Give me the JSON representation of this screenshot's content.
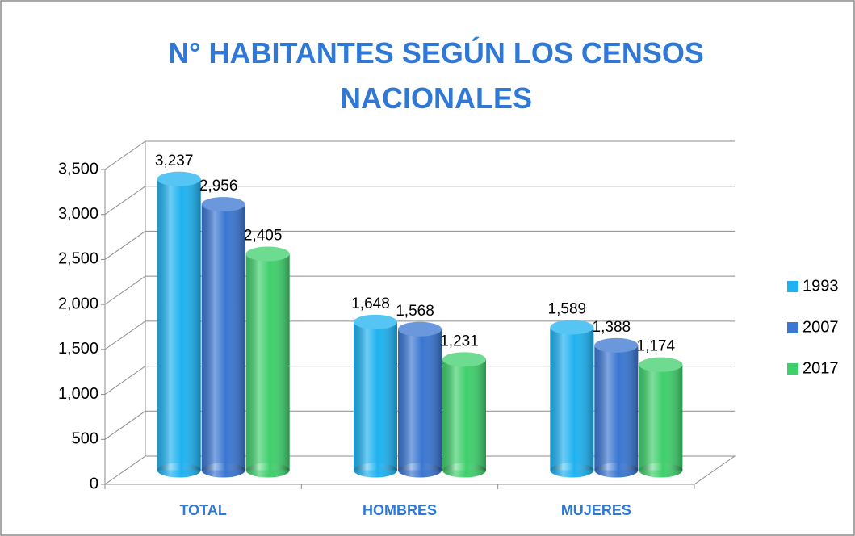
{
  "chart_data": {
    "type": "bar3d",
    "title": "N° HABITANTES SEGÚN LOS CENSOS NACIONALES",
    "categories": [
      "TOTAL",
      "HOMBRES",
      "MUJERES"
    ],
    "series": [
      {
        "name": "1993",
        "color": "#1fb2f0",
        "values": [
          3237,
          1648,
          1589
        ],
        "value_labels": [
          "3,237",
          "1,648",
          "1,589"
        ]
      },
      {
        "name": "2007",
        "color": "#3a76d2",
        "values": [
          2956,
          1568,
          1388
        ],
        "value_labels": [
          "2,956",
          "1,568",
          "1,388"
        ]
      },
      {
        "name": "2017",
        "color": "#3fcf6c",
        "values": [
          2405,
          1231,
          1174
        ],
        "value_labels": [
          "2,405",
          "1,231",
          "1,174"
        ]
      }
    ],
    "ylim": [
      0,
      3500
    ],
    "yticks": [
      0,
      500,
      {
        "value": 1000,
        "label": "1,000"
      },
      {
        "value": 1500,
        "label": "1,500"
      },
      {
        "value": 2000,
        "label": "2,000"
      },
      {
        "value": 2500,
        "label": "2,500"
      },
      {
        "value": 3000,
        "label": "3,000"
      },
      {
        "value": 3500,
        "label": "3,500"
      }
    ],
    "grid": true,
    "legend": "right"
  }
}
